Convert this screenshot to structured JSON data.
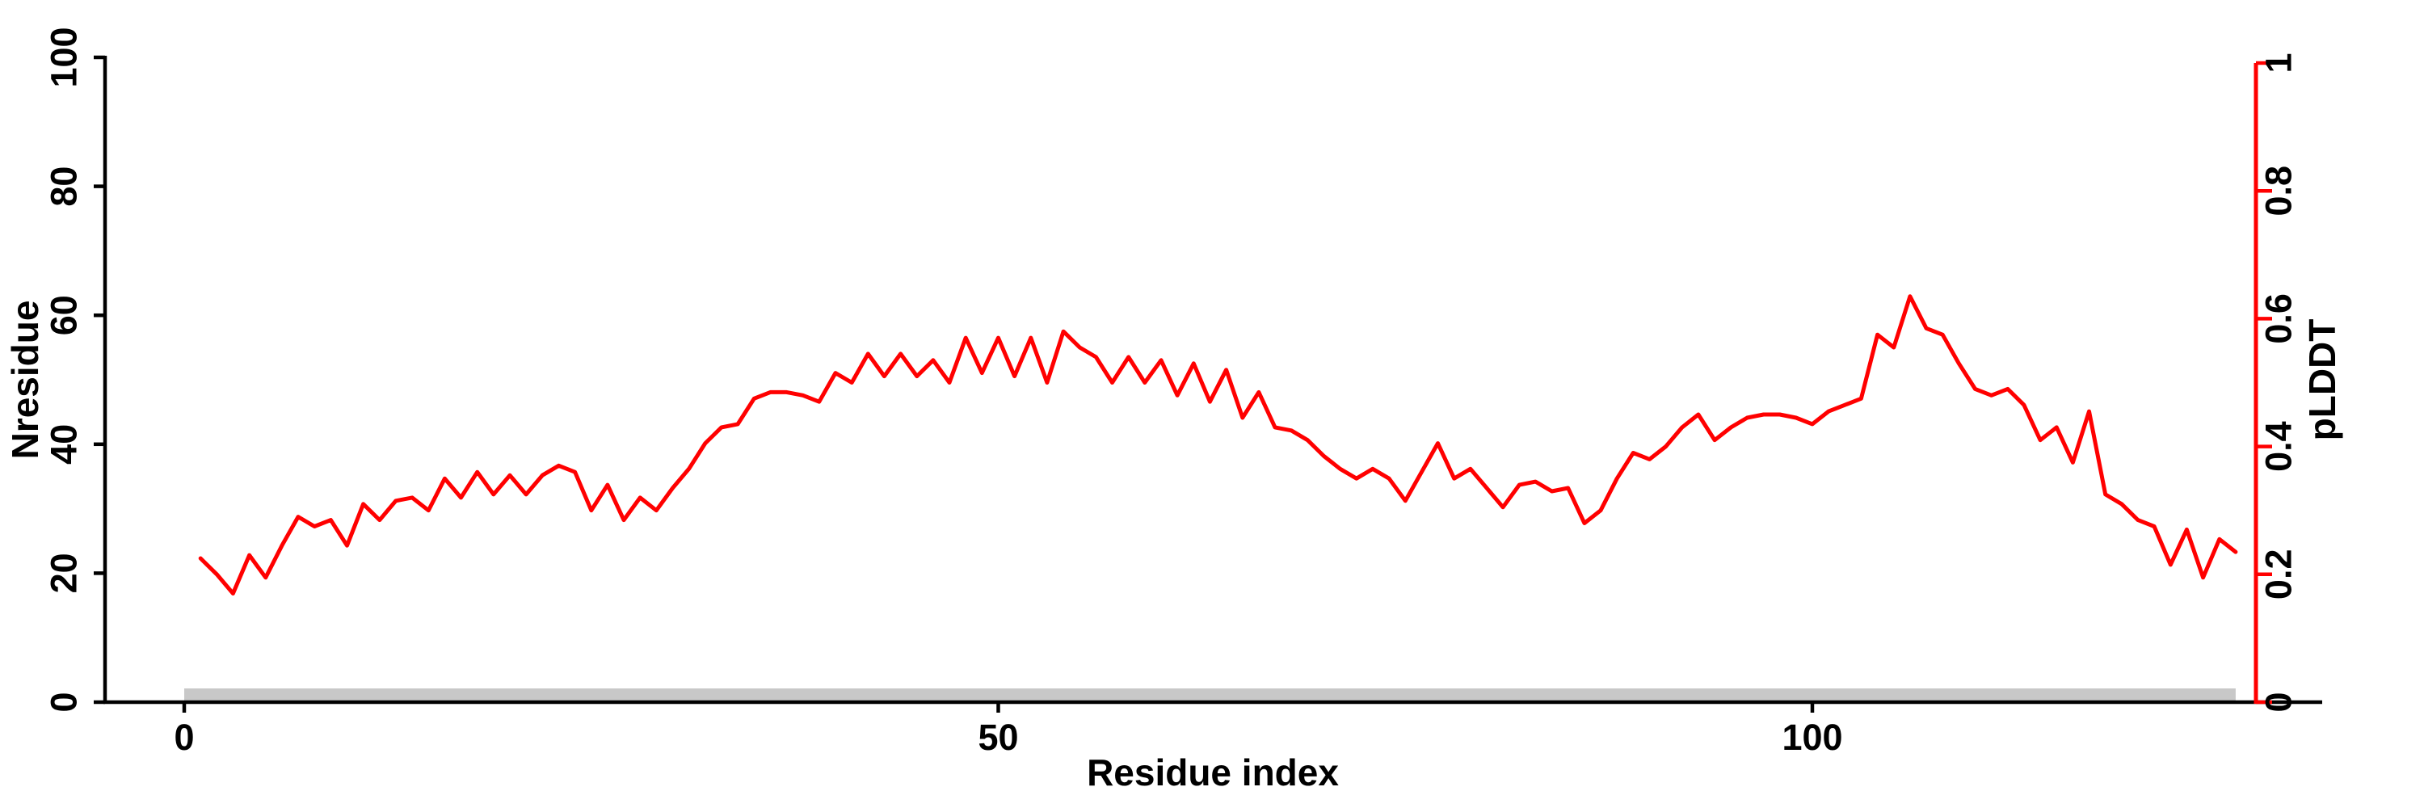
{
  "figure": {
    "background_color": "#FFFFFF",
    "line_color": "#FF0000",
    "axis_color": "#000000",
    "right_axis_color": "#FF0000",
    "gray_bar_color": "#C8C8C8"
  },
  "chart_data": {
    "type": "line",
    "title": "",
    "xlabel": "Residue index",
    "x_axis": {
      "tick_values": [
        0,
        50,
        100
      ],
      "tick_labels": [
        "0",
        "50",
        "100"
      ],
      "range": [
        0,
        131
      ]
    },
    "left_axis": {
      "label": "Nresidue",
      "tick_values": [
        0,
        20,
        40,
        60,
        80,
        100
      ],
      "tick_labels": [
        "0",
        "20",
        "40",
        "60",
        "80",
        "100"
      ],
      "range": [
        0,
        100
      ],
      "color": "#000000"
    },
    "right_axis": {
      "label": "pLDDT",
      "tick_values": [
        0,
        0.2,
        0.4,
        0.6,
        0.8,
        1
      ],
      "tick_labels": [
        "0",
        "0.2",
        "0.4",
        "0.6",
        "0.8",
        "1"
      ],
      "range": [
        0,
        1
      ],
      "color": "#FF0000"
    },
    "grid": false,
    "legend": null,
    "series": [
      {
        "name": "pLDDT",
        "axis": "right",
        "color": "#FF0000",
        "x_start": 1,
        "x_step": 1,
        "values": [
          0.225,
          0.2,
          0.17,
          0.23,
          0.195,
          0.245,
          0.29,
          0.275,
          0.285,
          0.245,
          0.31,
          0.285,
          0.315,
          0.32,
          0.3,
          0.35,
          0.32,
          0.36,
          0.325,
          0.355,
          0.325,
          0.355,
          0.37,
          0.36,
          0.3,
          0.34,
          0.285,
          0.32,
          0.3,
          0.335,
          0.365,
          0.405,
          0.43,
          0.435,
          0.475,
          0.485,
          0.485,
          0.48,
          0.47,
          0.515,
          0.5,
          0.545,
          0.51,
          0.545,
          0.51,
          0.535,
          0.5,
          0.57,
          0.515,
          0.57,
          0.51,
          0.57,
          0.5,
          0.58,
          0.555,
          0.54,
          0.5,
          0.54,
          0.5,
          0.535,
          0.48,
          0.53,
          0.47,
          0.52,
          0.445,
          0.485,
          0.43,
          0.425,
          0.41,
          0.385,
          0.365,
          0.35,
          0.365,
          0.35,
          0.315,
          0.36,
          0.405,
          0.35,
          0.365,
          0.335,
          0.305,
          0.34,
          0.345,
          0.33,
          0.335,
          0.28,
          0.3,
          0.35,
          0.39,
          0.38,
          0.4,
          0.43,
          0.45,
          0.41,
          0.43,
          0.445,
          0.45,
          0.45,
          0.445,
          0.435,
          0.455,
          0.465,
          0.475,
          0.575,
          0.555,
          0.635,
          0.585,
          0.575,
          0.53,
          0.49,
          0.48,
          0.49,
          0.465,
          0.41,
          0.43,
          0.375,
          0.455,
          0.325,
          0.31,
          0.285,
          0.275,
          0.215,
          0.27,
          0.195,
          0.255,
          0.235
        ]
      }
    ],
    "annotations": [
      {
        "name": "baseline-bar",
        "shape": "horizontal-bar",
        "color": "#C8C8C8",
        "x_start_residue": 0,
        "x_end_residue": 126,
        "left_axis_value_top": 2
      }
    ]
  }
}
